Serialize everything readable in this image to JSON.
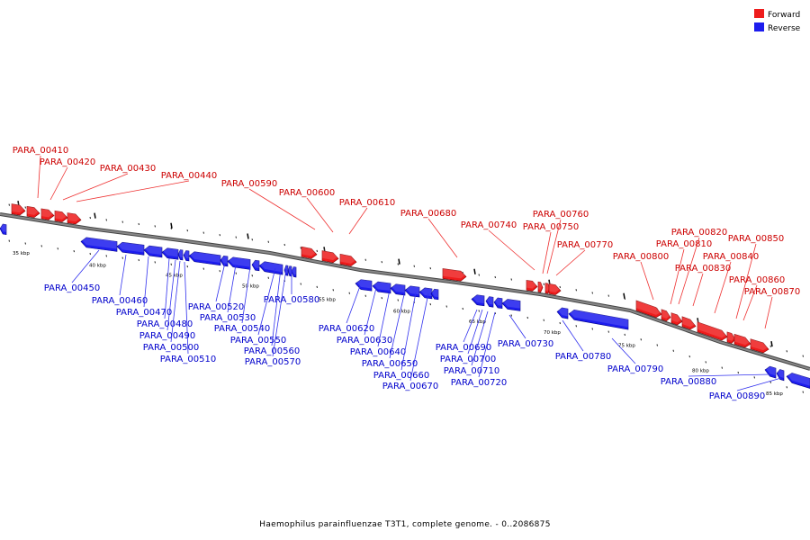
{
  "legend": {
    "forward": {
      "label": "Forward",
      "color": "#ee1c1c"
    },
    "reverse": {
      "label": "Reverse",
      "color": "#1c1cee"
    }
  },
  "caption": "Haemophilus parainfluenzae T3T1, complete genome. - 0..2086875",
  "colors": {
    "forward": "#ee1c1c",
    "reverse": "#1c1cee",
    "backbone": "#888888",
    "label_forward": "#cc0000",
    "label_reverse": "#0000cc"
  },
  "kbp_labels": [
    "35 kbp",
    "40 kbp",
    "45 kbp",
    "50 kbp",
    "55 kbp",
    "60 kbp",
    "65 kbp",
    "70 kbp",
    "75 kbp",
    "80 kbp",
    "85 kbp"
  ],
  "forward_genes": [
    "PARA_00410",
    "PARA_00420",
    "PARA_00430",
    "PARA_00440",
    "PARA_00590",
    "PARA_00600",
    "PARA_00610",
    "PARA_00680",
    "PARA_00740",
    "PARA_00750",
    "PARA_00760",
    "PARA_00770",
    "PARA_00800",
    "PARA_00810",
    "PARA_00820",
    "PARA_00830",
    "PARA_00840",
    "PARA_00850",
    "PARA_00860",
    "PARA_00870"
  ],
  "reverse_genes": [
    "PARA_00450",
    "PARA_00460",
    "PARA_00470",
    "PARA_00480",
    "PARA_00490",
    "PARA_00500",
    "PARA_00510",
    "PARA_00520",
    "PARA_00530",
    "PARA_00540",
    "PARA_00550",
    "PARA_00560",
    "PARA_00570",
    "PARA_00580",
    "PARA_00620",
    "PARA_00630",
    "PARA_00640",
    "PARA_00650",
    "PARA_00660",
    "PARA_00670",
    "PARA_00690",
    "PARA_00700",
    "PARA_00710",
    "PARA_00720",
    "PARA_00730",
    "PARA_00780",
    "PARA_00790",
    "PARA_00880",
    "PARA_00890"
  ]
}
